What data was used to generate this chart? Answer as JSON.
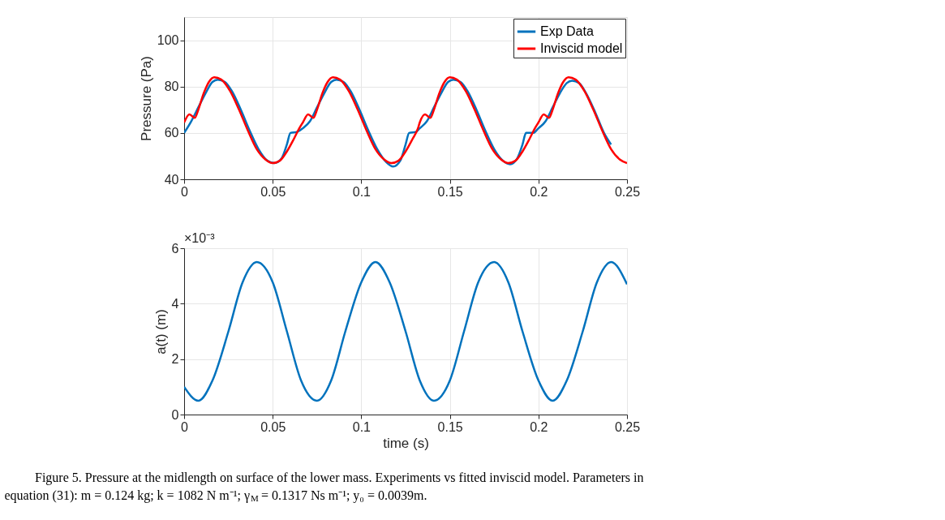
{
  "chart_data": [
    {
      "type": "line",
      "ylabel": "Pressure (Pa)",
      "xlim": [
        0,
        0.25
      ],
      "xticks": [
        0,
        0.05,
        0.1,
        0.15,
        0.2,
        0.25
      ],
      "ylim": [
        40,
        110
      ],
      "yticks": [
        40,
        60,
        80,
        100
      ],
      "grid": true,
      "legend": "top right",
      "series": [
        {
          "name": "Exp Data",
          "color": "#0072bd",
          "x": [
            0,
            0.004,
            0.008,
            0.012,
            0.016,
            0.019,
            0.023,
            0.027,
            0.032,
            0.037,
            0.042,
            0.047,
            0.051,
            0.055,
            0.058,
            0.06,
            0.064,
            0.067,
            0.071,
            0.075,
            0.079,
            0.083,
            0.086,
            0.09,
            0.094,
            0.099,
            0.104,
            0.109,
            0.114,
            0.118,
            0.122,
            0.125,
            0.127,
            0.131,
            0.133,
            0.137,
            0.141,
            0.145,
            0.149,
            0.152,
            0.156,
            0.16,
            0.165,
            0.17,
            0.175,
            0.18,
            0.184,
            0.188,
            0.191,
            0.193,
            0.197,
            0.2,
            0.204,
            0.208,
            0.212,
            0.216,
            0.219,
            0.223,
            0.227,
            0.232,
            0.237,
            0.241
          ],
          "values": [
            60,
            65,
            71,
            77,
            82,
            83,
            82,
            78,
            70,
            61,
            53,
            48,
            47,
            49,
            55,
            60,
            60.5,
            62,
            65,
            71,
            77,
            82,
            83,
            82,
            78,
            70,
            61,
            53,
            47.5,
            45.5,
            48,
            55,
            60,
            60.5,
            62,
            65,
            71,
            77,
            82,
            83,
            82,
            78,
            70,
            61,
            53,
            48,
            46.5,
            49,
            55,
            60,
            60,
            62,
            65,
            71,
            77,
            81.5,
            82.5,
            81.5,
            77,
            69,
            60,
            55
          ]
        },
        {
          "name": "Inviscid model",
          "color": "#ff0000",
          "x": [
            0,
            0.003,
            0.006,
            0.008,
            0.011,
            0.014,
            0.017,
            0.021,
            0.026,
            0.031,
            0.036,
            0.041,
            0.046,
            0.05,
            0.054,
            0.058,
            0.062,
            0.065,
            0.067,
            0.07,
            0.073,
            0.075,
            0.078,
            0.081,
            0.084,
            0.088,
            0.093,
            0.098,
            0.103,
            0.108,
            0.113,
            0.117,
            0.121,
            0.125,
            0.129,
            0.132,
            0.133,
            0.136,
            0.139,
            0.141,
            0.144,
            0.147,
            0.15,
            0.154,
            0.159,
            0.164,
            0.169,
            0.174,
            0.179,
            0.183,
            0.187,
            0.191,
            0.195,
            0.198,
            0.2,
            0.203,
            0.206,
            0.208,
            0.211,
            0.214,
            0.217,
            0.221,
            0.226,
            0.231,
            0.236,
            0.241,
            0.246,
            0.25
          ],
          "values": [
            64.5,
            68,
            66.5,
            70,
            77,
            82,
            84,
            83,
            78,
            70,
            61,
            53,
            48.5,
            47,
            48,
            52,
            57.5,
            62,
            64.5,
            68,
            66.5,
            70,
            77,
            82,
            84,
            83,
            78,
            70,
            61,
            53,
            48.5,
            47,
            48,
            52,
            57.5,
            62,
            64.5,
            68,
            66.5,
            70,
            77,
            82,
            84,
            83,
            78,
            70,
            61,
            53,
            48.5,
            47,
            48,
            52,
            57.5,
            62,
            64.5,
            68,
            66.5,
            70,
            77,
            82,
            84,
            83,
            78,
            70,
            61,
            53,
            48.5,
            47
          ]
        }
      ]
    },
    {
      "type": "line",
      "xlabel": "time (s)",
      "ylabel": "a(t) (m)",
      "xlim": [
        0,
        0.25
      ],
      "xticks": [
        0,
        0.05,
        0.1,
        0.15,
        0.2,
        0.25
      ],
      "ylim": [
        0,
        6
      ],
      "yticks": [
        0,
        2,
        4,
        6
      ],
      "grid": true,
      "annotations": [
        "×10⁻³",
        "Figure 5.  Pressure at the midlength on surface of the lower mass. Experiments vs fitted inviscid model. Parameters in",
        "equation (31): m = 0.124 kg; k = 1082 N m⁻¹; γ$_{M}$ = 0.1317 Ns m⁻¹; y₀ = 0.0039m."
      ],
      "series": [
        {
          "color": "#0072bd",
          "x": [
            0,
            0.008,
            0.016,
            0.025,
            0.033,
            0.041,
            0.05,
            0.058,
            0.066,
            0.075,
            0.083,
            0.091,
            0.1,
            0.108,
            0.116,
            0.125,
            0.133,
            0.141,
            0.15,
            0.158,
            0.166,
            0.175,
            0.183,
            0.191,
            0.2,
            0.208,
            0.216,
            0.225,
            0.233,
            0.241,
            0.25
          ],
          "values": [
            1.0,
            0.5,
            1.23,
            3.0,
            4.77,
            5.5,
            4.77,
            3.0,
            1.23,
            0.5,
            1.23,
            3.0,
            4.77,
            5.5,
            4.77,
            3.0,
            1.23,
            0.5,
            1.23,
            3.0,
            4.77,
            5.5,
            4.77,
            3.0,
            1.23,
            0.5,
            1.23,
            3.0,
            4.77,
            5.5,
            4.7
          ]
        }
      ]
    }
  ]
}
